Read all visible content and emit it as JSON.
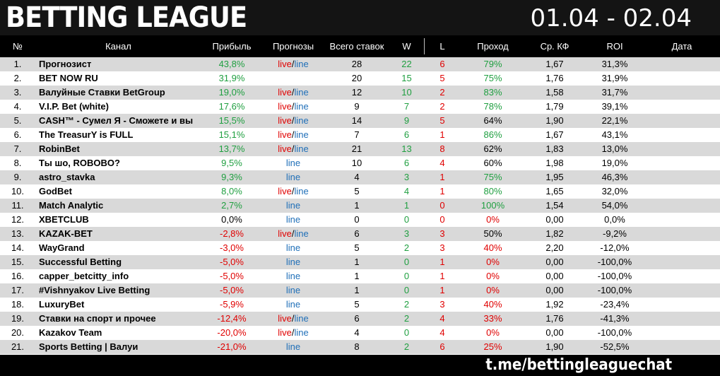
{
  "header": {
    "title": "BETTING LEAGUE",
    "dates": "01.04 - 02.04"
  },
  "columns": {
    "num": "№",
    "channel": "Канал",
    "profit": "Прибыль",
    "forecasts": "Прогнозы",
    "total": "Всего ставок",
    "w": "W",
    "l": "L",
    "pass": "Проход",
    "kf": "Ср. КФ",
    "roi": "ROI",
    "date": "Дата"
  },
  "rows": [
    {
      "num": "1.",
      "name": "Прогнозист",
      "profit": "43,8%",
      "live": "live",
      "slash": "/",
      "line": "line",
      "total": "28",
      "w": "22",
      "l": "6",
      "pass": "79%",
      "kf": "1,67",
      "roi": "31,3%"
    },
    {
      "num": "2.",
      "name": "BET NOW RU",
      "profit": "31,9%",
      "live": "",
      "slash": "",
      "line": "",
      "total": "20",
      "w": "15",
      "l": "5",
      "pass": "75%",
      "kf": "1,76",
      "roi": "31,9%"
    },
    {
      "num": "3.",
      "name": "Валуйные Ставки BetGroup",
      "profit": "19,0%",
      "live": "live",
      "slash": "/",
      "line": "line",
      "total": "12",
      "w": "10",
      "l": "2",
      "pass": "83%",
      "kf": "1,58",
      "roi": "31,7%"
    },
    {
      "num": "4.",
      "name": "V.I.P. Bet (white)",
      "profit": "17,6%",
      "live": "live",
      "slash": "/",
      "line": "line",
      "total": "9",
      "w": "7",
      "l": "2",
      "pass": "78%",
      "kf": "1,79",
      "roi": "39,1%"
    },
    {
      "num": "5.",
      "name": "CASH™ - Сумел Я - Сможете и вы",
      "profit": "15,5%",
      "live": "live",
      "slash": "/",
      "line": "line",
      "total": "14",
      "w": "9",
      "l": "5",
      "pass": "64%",
      "kf": "1,90",
      "roi": "22,1%"
    },
    {
      "num": "6.",
      "name": "The TreasurY is FULL",
      "profit": "15,1%",
      "live": "live",
      "slash": "/",
      "line": "line",
      "total": "7",
      "w": "6",
      "l": "1",
      "pass": "86%",
      "kf": "1,67",
      "roi": "43,1%"
    },
    {
      "num": "7.",
      "name": "RobinBet",
      "profit": "13,7%",
      "live": "live",
      "slash": "/",
      "line": "line",
      "total": "21",
      "w": "13",
      "l": "8",
      "pass": "62%",
      "kf": "1,83",
      "roi": "13,0%"
    },
    {
      "num": "8.",
      "name": "Ты шо, ROBOBO?",
      "profit": "9,5%",
      "live": "",
      "slash": "",
      "line": "line",
      "total": "10",
      "w": "6",
      "l": "4",
      "pass": "60%",
      "kf": "1,98",
      "roi": "19,0%"
    },
    {
      "num": "9.",
      "name": "astro_stavka",
      "profit": "9,3%",
      "live": "",
      "slash": "",
      "line": "line",
      "total": "4",
      "w": "3",
      "l": "1",
      "pass": "75%",
      "kf": "1,95",
      "roi": "46,3%"
    },
    {
      "num": "10.",
      "name": "GodBet",
      "profit": "8,0%",
      "live": "live",
      "slash": "/",
      "line": "line",
      "total": "5",
      "w": "4",
      "l": "1",
      "pass": "80%",
      "kf": "1,65",
      "roi": "32,0%"
    },
    {
      "num": "11.",
      "name": "Match Analytic",
      "profit": "2,7%",
      "live": "",
      "slash": "",
      "line": "line",
      "total": "1",
      "w": "1",
      "l": "0",
      "pass": "100%",
      "kf": "1,54",
      "roi": "54,0%"
    },
    {
      "num": "12.",
      "name": "XBETCLUB",
      "profit": "0,0%",
      "live": "",
      "slash": "",
      "line": "line",
      "total": "0",
      "w": "0",
      "l": "0",
      "pass": "0%",
      "kf": "0,00",
      "roi": "0,0%"
    },
    {
      "num": "13.",
      "name": "KAZAK-BET",
      "profit": "-2,8%",
      "live": "live",
      "slash": "/",
      "line": "line",
      "total": "6",
      "w": "3",
      "l": "3",
      "pass": "50%",
      "kf": "1,82",
      "roi": "-9,2%"
    },
    {
      "num": "14.",
      "name": "WayGrand",
      "profit": "-3,0%",
      "live": "",
      "slash": "",
      "line": "line",
      "total": "5",
      "w": "2",
      "l": "3",
      "pass": "40%",
      "kf": "2,20",
      "roi": "-12,0%"
    },
    {
      "num": "15.",
      "name": "Successful Betting",
      "profit": "-5,0%",
      "live": "",
      "slash": "",
      "line": "line",
      "total": "1",
      "w": "0",
      "l": "1",
      "pass": "0%",
      "kf": "0,00",
      "roi": "-100,0%"
    },
    {
      "num": "16.",
      "name": "capper_betcitty_info",
      "profit": "-5,0%",
      "live": "",
      "slash": "",
      "line": "line",
      "total": "1",
      "w": "0",
      "l": "1",
      "pass": "0%",
      "kf": "0,00",
      "roi": "-100,0%"
    },
    {
      "num": "17.",
      "name": "#Vishnyakov Live Betting",
      "profit": "-5,0%",
      "live": "",
      "slash": "",
      "line": "line",
      "total": "1",
      "w": "0",
      "l": "1",
      "pass": "0%",
      "kf": "0,00",
      "roi": "-100,0%"
    },
    {
      "num": "18.",
      "name": "LuxuryBet",
      "profit": "-5,9%",
      "live": "",
      "slash": "",
      "line": "line",
      "total": "5",
      "w": "2",
      "l": "3",
      "pass": "40%",
      "kf": "1,92",
      "roi": "-23,4%"
    },
    {
      "num": "19.",
      "name": "Ставки на спорт и прочее",
      "profit": "-12,4%",
      "live": "live",
      "slash": "/",
      "line": "line",
      "total": "6",
      "w": "2",
      "l": "4",
      "pass": "33%",
      "kf": "1,76",
      "roi": "-41,3%"
    },
    {
      "num": "20.",
      "name": "Kazakov Team",
      "profit": "-20,0%",
      "live": "live",
      "slash": "/",
      "line": "line",
      "total": "4",
      "w": "0",
      "l": "4",
      "pass": "0%",
      "kf": "0,00",
      "roi": "-100,0%"
    },
    {
      "num": "21.",
      "name": "Sports Betting | Валуи",
      "profit": "-21,0%",
      "live": "",
      "slash": "",
      "line": "line",
      "total": "8",
      "w": "2",
      "l": "6",
      "pass": "25%",
      "kf": "1,90",
      "roi": "-52,5%"
    }
  ],
  "footer": {
    "link": "t.me/bettingleaguechat"
  },
  "colors": {
    "positive": "#1f9f40",
    "negative": "#e00000",
    "live": "#e00000",
    "line": "#1f6fb8",
    "header_bg": "#141414",
    "stripe": "#d9d9d9"
  }
}
